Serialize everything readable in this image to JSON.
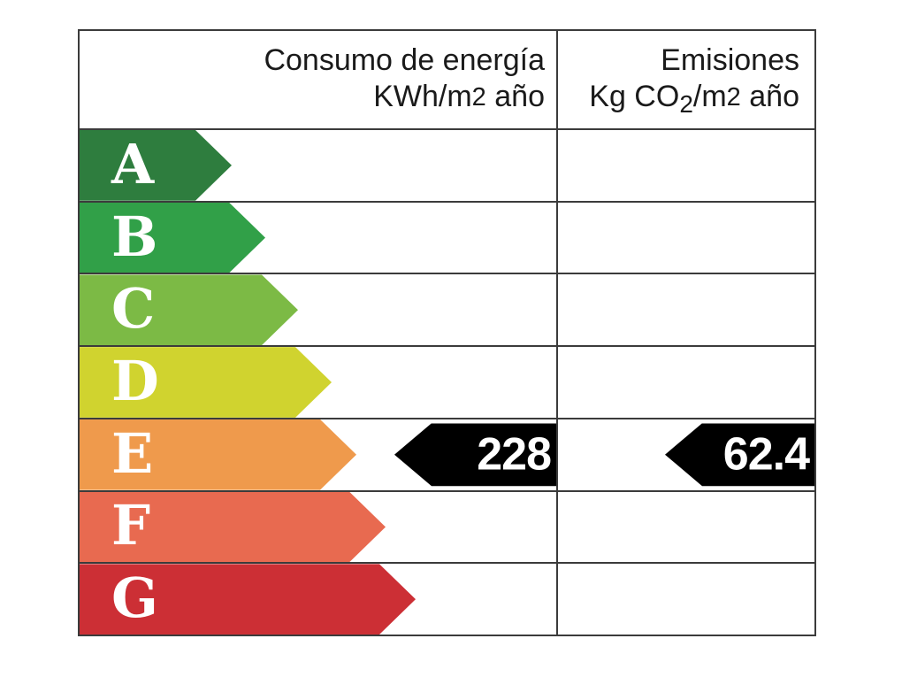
{
  "chart_data": {
    "type": "bar",
    "subtype": "energy-efficiency-certificate",
    "column_headers": [
      "Consumo de energía KWh/m2 año",
      "Emisiones Kg CO2/m2 año"
    ],
    "categories": [
      "A",
      "B",
      "C",
      "D",
      "E",
      "F",
      "G"
    ],
    "bar_colors": [
      "#2e7d3e",
      "#31a048",
      "#7cba45",
      "#d0d32f",
      "#ef9a4c",
      "#e86a50",
      "#cc2f35"
    ],
    "current_rating": "E",
    "consumption_kwh_per_m2_year": 228,
    "emissions_kg_co2_per_m2_year": 62.4,
    "legend": "none",
    "grid": "table-lines"
  },
  "header": {
    "consumption": {
      "line1": "Consumo de energía",
      "line2_pre": "KWh/m",
      "line2_sup": "2",
      "line2_post": " año"
    },
    "emissions": {
      "line1": "Emisiones",
      "line2_pre": "Kg CO",
      "line2_sub": "2",
      "line2_mid": "/m",
      "line2_sup": "2",
      "line2_post": " año"
    }
  },
  "ratings": [
    {
      "letter": "A",
      "color": "#2e7d3e"
    },
    {
      "letter": "B",
      "color": "#31a048"
    },
    {
      "letter": "C",
      "color": "#7cba45"
    },
    {
      "letter": "D",
      "color": "#d0d32f"
    },
    {
      "letter": "E",
      "color": "#ef9a4c"
    },
    {
      "letter": "F",
      "color": "#e86a50"
    },
    {
      "letter": "G",
      "color": "#cc2f35"
    }
  ],
  "indicators": {
    "rating_row": "E",
    "consumption_value": "228",
    "emissions_value": "62.4",
    "arrow_color": "#000000",
    "value_text_color": "#ffffff"
  },
  "colors": {
    "background": "#ffffff",
    "border": "#3b3b3b",
    "header_text": "#1a1a1a"
  }
}
